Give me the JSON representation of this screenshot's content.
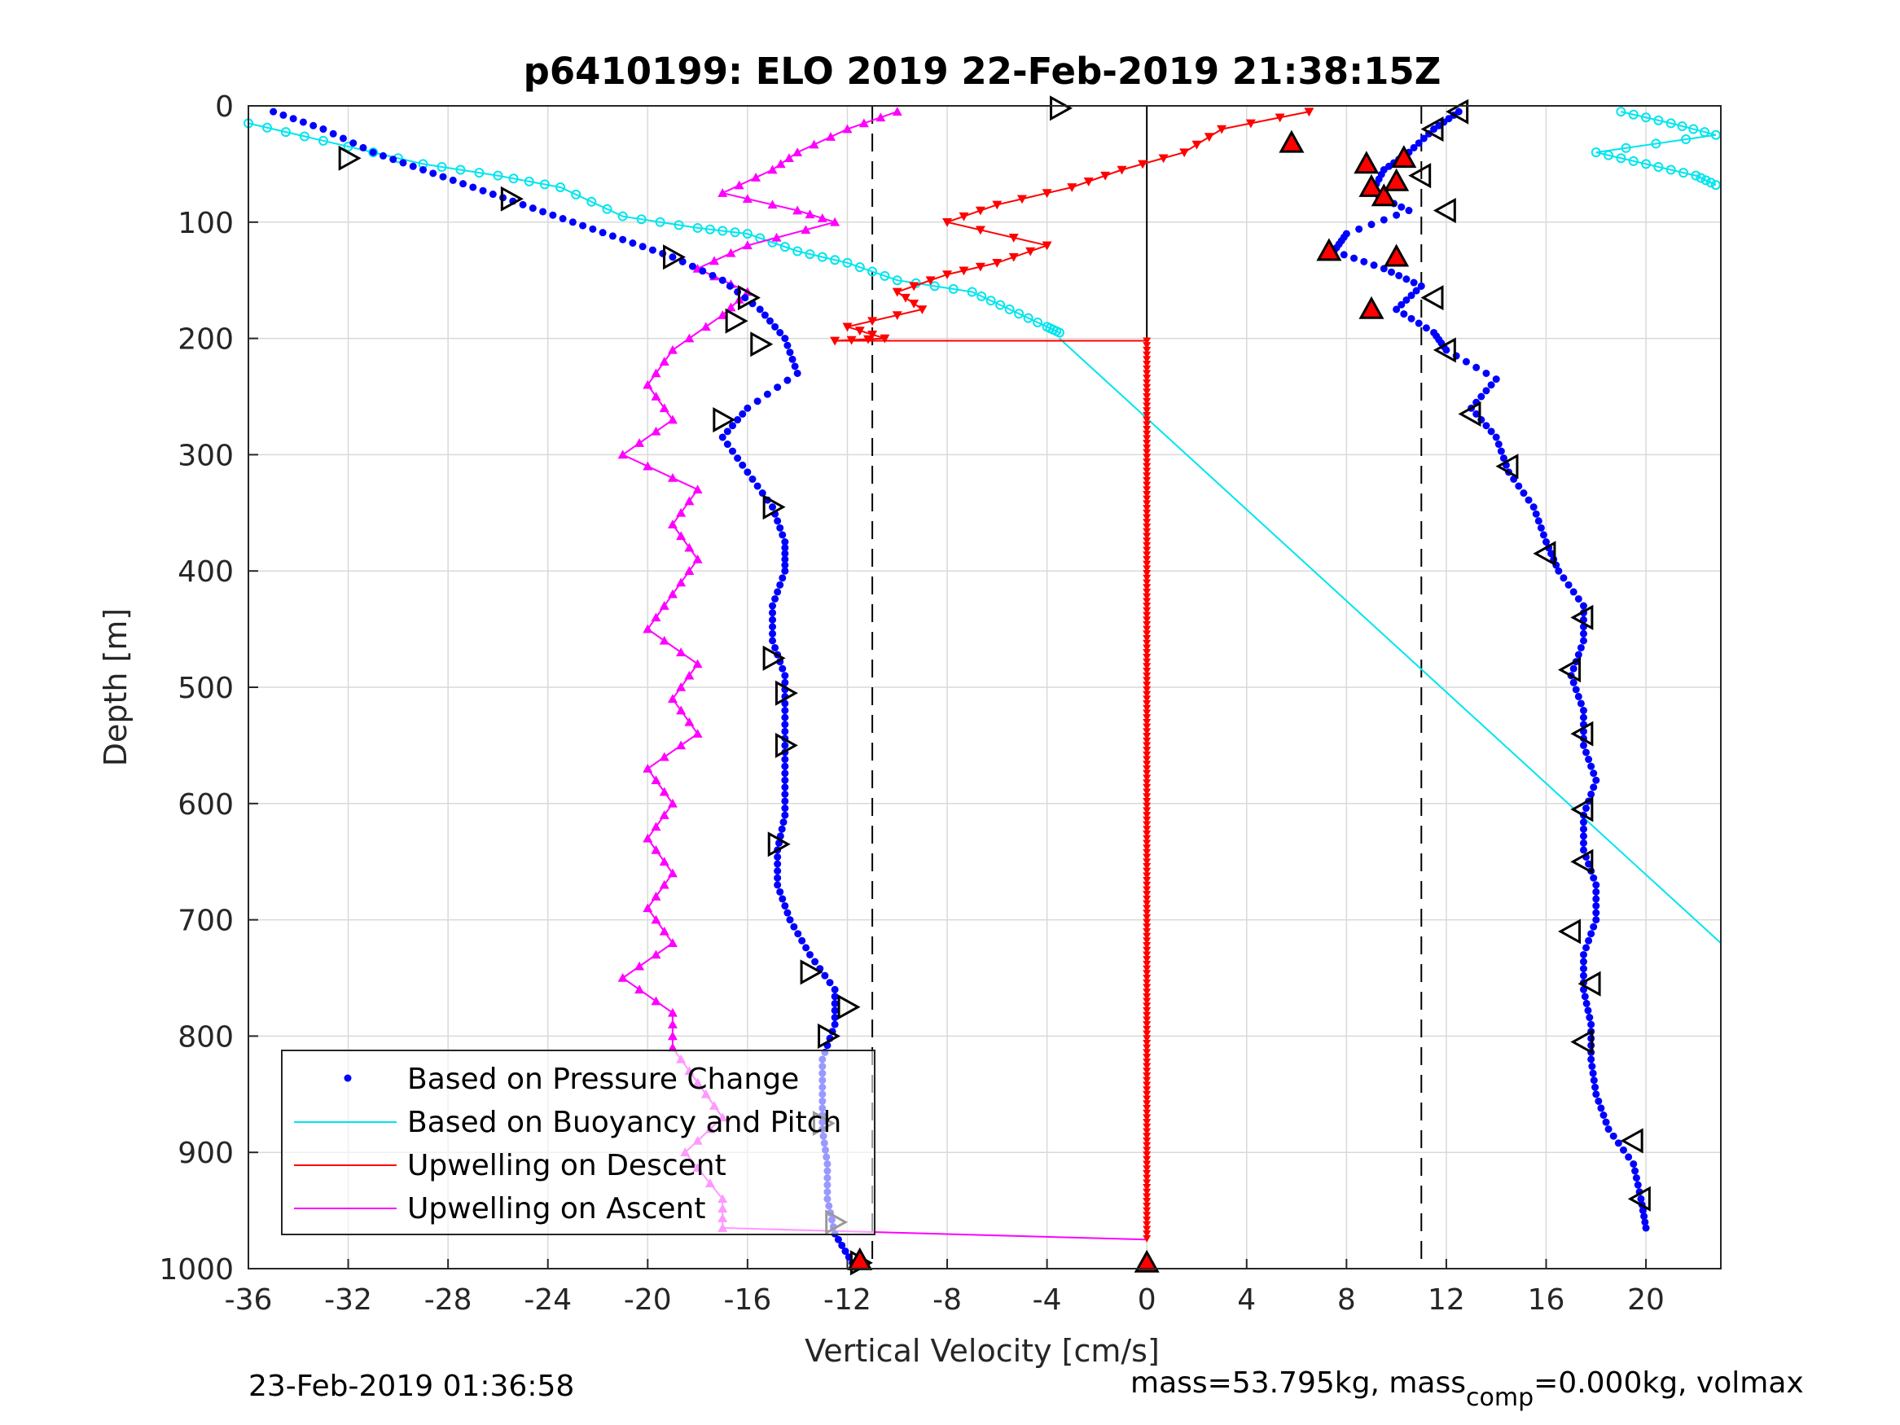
{
  "chart_data": {
    "type": "scatter",
    "title": "p6410199: ELO 2019 22-Feb-2019 21:38:15Z",
    "xlabel": "Vertical Velocity [cm/s]",
    "ylabel": "Depth [m]",
    "xlim": [
      -36,
      23
    ],
    "ylim": [
      0,
      1000
    ],
    "y_reversed": true,
    "x_ticks": [
      "-36",
      "-32",
      "-28",
      "-24",
      "-20",
      "-16",
      "-12",
      "-8",
      "-4",
      "0",
      "4",
      "8",
      "12",
      "16",
      "20"
    ],
    "y_ticks": [
      "0",
      "100",
      "200",
      "300",
      "400",
      "500",
      "600",
      "700",
      "800",
      "900",
      "1000"
    ],
    "grid": true,
    "legend_position": "bottom-left",
    "reference_lines": {
      "dashed_x": [
        -11,
        11
      ],
      "solid_x": [
        0
      ]
    },
    "series": [
      {
        "name": "Based on Pressure Change",
        "style": "dots",
        "color": "#0000ff",
        "descent": [
          [
            -35,
            5
          ],
          [
            -33,
            20
          ],
          [
            -31,
            40
          ],
          [
            -29,
            55
          ],
          [
            -27,
            70
          ],
          [
            -25,
            85
          ],
          [
            -23,
            100
          ],
          [
            -21,
            115
          ],
          [
            -19,
            130
          ],
          [
            -17,
            150
          ],
          [
            -15.5,
            175
          ],
          [
            -14.5,
            200
          ],
          [
            -14,
            230
          ],
          [
            -16,
            260
          ],
          [
            -17,
            285
          ],
          [
            -16,
            315
          ],
          [
            -15,
            345
          ],
          [
            -14.5,
            375
          ],
          [
            -14.5,
            400
          ],
          [
            -15,
            430
          ],
          [
            -15,
            460
          ],
          [
            -14.5,
            490
          ],
          [
            -14.5,
            520
          ],
          [
            -14.5,
            550
          ],
          [
            -14.5,
            580
          ],
          [
            -14.5,
            610
          ],
          [
            -14.8,
            640
          ],
          [
            -14.8,
            670
          ],
          [
            -14.3,
            700
          ],
          [
            -13.5,
            730
          ],
          [
            -12.5,
            760
          ],
          [
            -12.5,
            790
          ],
          [
            -13,
            820
          ],
          [
            -13,
            850
          ],
          [
            -13,
            880
          ],
          [
            -12.8,
            910
          ],
          [
            -12.8,
            940
          ],
          [
            -12.5,
            970
          ],
          [
            -11.8,
            995
          ]
        ],
        "ascent": [
          [
            12.5,
            5
          ],
          [
            11.5,
            20
          ],
          [
            10.5,
            40
          ],
          [
            9.5,
            55
          ],
          [
            9,
            75
          ],
          [
            10.5,
            90
          ],
          [
            8,
            110
          ],
          [
            7.5,
            125
          ],
          [
            9.5,
            140
          ],
          [
            11,
            155
          ],
          [
            10,
            175
          ],
          [
            11.5,
            195
          ],
          [
            12,
            210
          ],
          [
            14,
            235
          ],
          [
            13,
            260
          ],
          [
            14,
            285
          ],
          [
            14.5,
            315
          ],
          [
            15.5,
            345
          ],
          [
            16,
            375
          ],
          [
            16.5,
            400
          ],
          [
            17.5,
            430
          ],
          [
            17.5,
            460
          ],
          [
            17,
            490
          ],
          [
            17.5,
            520
          ],
          [
            17.5,
            550
          ],
          [
            18,
            580
          ],
          [
            17.5,
            610
          ],
          [
            17.5,
            640
          ],
          [
            18,
            670
          ],
          [
            18,
            700
          ],
          [
            17.5,
            730
          ],
          [
            17.5,
            760
          ],
          [
            17.8,
            790
          ],
          [
            17.8,
            820
          ],
          [
            18,
            850
          ],
          [
            18.5,
            880
          ],
          [
            19.5,
            910
          ],
          [
            19.8,
            940
          ],
          [
            20,
            965
          ]
        ]
      },
      {
        "name": "Based on Buoyancy and Pitch",
        "style": "line",
        "color": "#00e5ee",
        "surface": [
          [
            -36,
            15
          ],
          [
            -33,
            30
          ],
          [
            -29,
            50
          ],
          [
            -26,
            60
          ],
          [
            -23.5,
            70
          ],
          [
            -21,
            95
          ],
          [
            -18,
            105
          ],
          [
            -16,
            110
          ],
          [
            -14,
            125
          ],
          [
            -12,
            135
          ],
          [
            -10,
            150
          ],
          [
            -7,
            160
          ],
          [
            -5.5,
            175
          ],
          [
            -4,
            190
          ],
          [
            -3.5,
            195
          ]
        ],
        "model_line": [
          [
            -3.5,
            200
          ],
          [
            23,
            720
          ]
        ],
        "near_surface_right": [
          [
            19,
            5
          ],
          [
            21,
            15
          ],
          [
            22.8,
            25
          ],
          [
            18,
            40
          ],
          [
            20,
            50
          ],
          [
            22,
            60
          ],
          [
            22.8,
            68
          ]
        ]
      },
      {
        "name": "Upwelling on Descent",
        "style": "line-triangle-down",
        "color": "#ff0000",
        "points": [
          [
            6.5,
            5
          ],
          [
            3,
            20
          ],
          [
            1.5,
            40
          ],
          [
            -1,
            55
          ],
          [
            -3,
            70
          ],
          [
            -6,
            85
          ],
          [
            -8,
            100
          ],
          [
            -4,
            120
          ],
          [
            -6,
            135
          ],
          [
            -8,
            145
          ],
          [
            -10,
            160
          ],
          [
            -9,
            175
          ],
          [
            -12,
            190
          ],
          [
            -10.5,
            200
          ],
          [
            -12.5,
            202
          ],
          [
            0,
            202
          ],
          [
            0,
            975
          ]
        ]
      },
      {
        "name": "Upwelling on Ascent",
        "style": "line-triangle-up",
        "color": "#ff00ff",
        "points": [
          [
            -10,
            5
          ],
          [
            -12,
            20
          ],
          [
            -14,
            40
          ],
          [
            -15,
            55
          ],
          [
            -17,
            75
          ],
          [
            -14,
            90
          ],
          [
            -12.5,
            100
          ],
          [
            -16,
            120
          ],
          [
            -18,
            140
          ],
          [
            -16,
            160
          ],
          [
            -17,
            180
          ],
          [
            -19,
            210
          ],
          [
            -20,
            240
          ],
          [
            -19,
            270
          ],
          [
            -21,
            300
          ],
          [
            -18,
            330
          ],
          [
            -19,
            360
          ],
          [
            -18,
            390
          ],
          [
            -19,
            420
          ],
          [
            -20,
            450
          ],
          [
            -18,
            480
          ],
          [
            -19,
            510
          ],
          [
            -18,
            540
          ],
          [
            -20,
            570
          ],
          [
            -19,
            600
          ],
          [
            -20,
            630
          ],
          [
            -19,
            660
          ],
          [
            -20,
            690
          ],
          [
            -19,
            720
          ],
          [
            -21,
            750
          ],
          [
            -19,
            780
          ],
          [
            -19,
            810
          ],
          [
            -18,
            840
          ],
          [
            -17,
            870
          ],
          [
            -18.5,
            900
          ],
          [
            -17,
            940
          ],
          [
            -17,
            965
          ],
          [
            0,
            975
          ]
        ]
      }
    ],
    "profile_markers": {
      "descent_right_triangles": [
        [
          -3.5,
          2
        ],
        [
          -32,
          45
        ],
        [
          -25.5,
          80
        ],
        [
          -19,
          130
        ],
        [
          -16,
          165
        ],
        [
          -16.5,
          185
        ],
        [
          -15.5,
          205
        ],
        [
          -17,
          270
        ],
        [
          -15,
          345
        ],
        [
          -15,
          475
        ],
        [
          -14.5,
          505
        ],
        [
          -14.5,
          550
        ],
        [
          -14.8,
          635
        ],
        [
          -13.5,
          745
        ],
        [
          -12,
          775
        ],
        [
          -12.8,
          800
        ],
        [
          -13,
          875
        ],
        [
          -12.5,
          960
        ],
        [
          -11.5,
          995
        ]
      ],
      "ascent_left_triangles": [
        [
          12.5,
          5
        ],
        [
          11.5,
          20
        ],
        [
          11,
          60
        ],
        [
          12,
          90
        ],
        [
          11.5,
          165
        ],
        [
          12,
          210
        ],
        [
          13,
          265
        ],
        [
          14.5,
          310
        ],
        [
          16,
          385
        ],
        [
          17.5,
          440
        ],
        [
          17,
          485
        ],
        [
          17.5,
          540
        ],
        [
          17.5,
          605
        ],
        [
          17.5,
          650
        ],
        [
          17,
          710
        ],
        [
          17.8,
          755
        ],
        [
          17.5,
          805
        ],
        [
          19.5,
          890
        ],
        [
          19.8,
          940
        ]
      ],
      "red_filled_triangles": [
        [
          5.8,
          32
        ],
        [
          8.8,
          50
        ],
        [
          10.3,
          45
        ],
        [
          9,
          70
        ],
        [
          9.5,
          78
        ],
        [
          10,
          65
        ],
        [
          7.3,
          125
        ],
        [
          10,
          130
        ],
        [
          9,
          175
        ],
        [
          -11.5,
          993
        ],
        [
          0,
          995
        ]
      ]
    },
    "legend_entries": [
      "Based on Pressure Change",
      "Based on Buoyancy and Pitch",
      "Upwelling on Descent",
      "Upwelling on Ascent"
    ]
  },
  "footer": {
    "timestamp": "23-Feb-2019 01:36:58",
    "mass_text": "mass=53.795kg, mass",
    "mass_sub": "comp",
    "mass_rest": "=0.000kg, volmax"
  },
  "colors": {
    "pressure": "#0000ff",
    "buoyancy": "#00e5ee",
    "descent": "#ff0000",
    "ascent": "#ff00ff",
    "grid": "#d9d9d9"
  }
}
